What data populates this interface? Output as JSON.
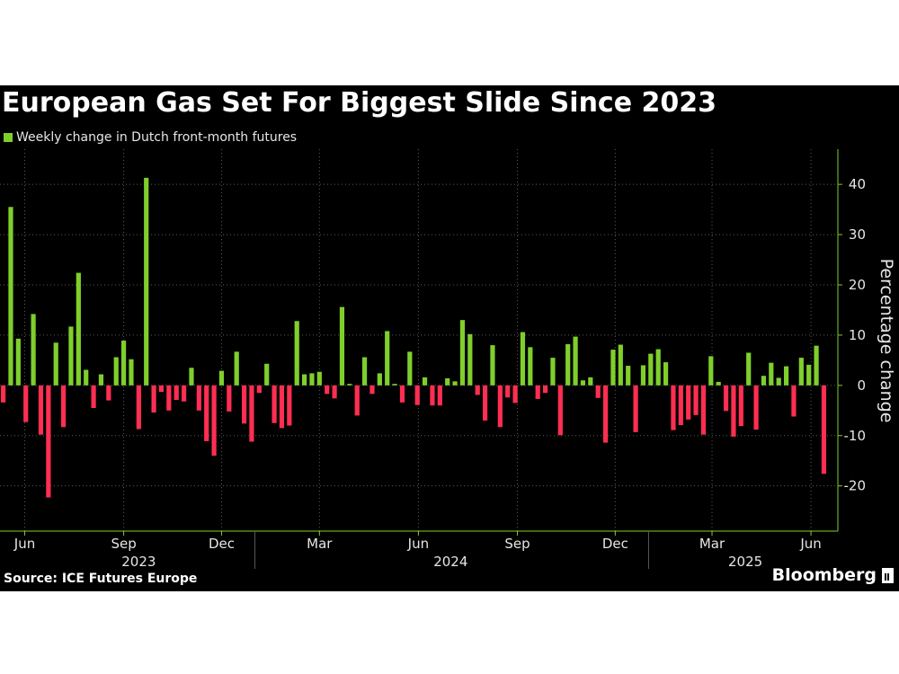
{
  "chart_data": {
    "type": "bar",
    "title": "European Gas Set For Biggest Slide Since 2023",
    "legend": [
      {
        "name": "Weekly change in Dutch front-month futures",
        "color": "#7fcf2c"
      }
    ],
    "ylabel": "Percentage change",
    "ylim": [
      -29,
      47
    ],
    "yticks": [
      40,
      30,
      20,
      10,
      0,
      -10,
      -20
    ],
    "y_axis_side": "right",
    "grid": true,
    "positive_color": "#7fcf2c",
    "negative_color": "#ff2e52",
    "month_ticks": [
      {
        "label": "Jun",
        "x": "2023-06-01"
      },
      {
        "label": "Sep",
        "x": "2023-09-01"
      },
      {
        "label": "Dec",
        "x": "2023-12-01"
      },
      {
        "label": "Mar",
        "x": "2024-03-01"
      },
      {
        "label": "Jun",
        "x": "2024-06-01"
      },
      {
        "label": "Sep",
        "x": "2024-09-01"
      },
      {
        "label": "Dec",
        "x": "2024-12-01"
      },
      {
        "label": "Mar",
        "x": "2025-03-01"
      },
      {
        "label": "Jun",
        "x": "2025-06-01"
      }
    ],
    "year_labels": [
      {
        "label": "2023",
        "x": "2023-09-15"
      },
      {
        "label": "2024",
        "x": "2024-07-01"
      },
      {
        "label": "2025",
        "x": "2025-04-01"
      }
    ],
    "year_separators": [
      "2024-01-01",
      "2025-01-01"
    ],
    "x": [
      "2023-05-12",
      "2023-05-19",
      "2023-05-26",
      "2023-06-02",
      "2023-06-09",
      "2023-06-16",
      "2023-06-23",
      "2023-06-30",
      "2023-07-07",
      "2023-07-14",
      "2023-07-21",
      "2023-07-28",
      "2023-08-04",
      "2023-08-11",
      "2023-08-18",
      "2023-08-25",
      "2023-09-01",
      "2023-09-08",
      "2023-09-15",
      "2023-09-22",
      "2023-09-29",
      "2023-10-06",
      "2023-10-13",
      "2023-10-20",
      "2023-10-27",
      "2023-11-03",
      "2023-11-10",
      "2023-11-17",
      "2023-11-24",
      "2023-12-01",
      "2023-12-08",
      "2023-12-15",
      "2023-12-22",
      "2023-12-29",
      "2024-01-05",
      "2024-01-12",
      "2024-01-19",
      "2024-01-26",
      "2024-02-02",
      "2024-02-09",
      "2024-02-16",
      "2024-02-23",
      "2024-03-01",
      "2024-03-08",
      "2024-03-15",
      "2024-03-22",
      "2024-03-29",
      "2024-04-05",
      "2024-04-12",
      "2024-04-19",
      "2024-04-26",
      "2024-05-03",
      "2024-05-10",
      "2024-05-17",
      "2024-05-24",
      "2024-05-31",
      "2024-06-07",
      "2024-06-14",
      "2024-06-21",
      "2024-06-28",
      "2024-07-05",
      "2024-07-12",
      "2024-07-19",
      "2024-07-26",
      "2024-08-02",
      "2024-08-09",
      "2024-08-16",
      "2024-08-23",
      "2024-08-30",
      "2024-09-06",
      "2024-09-13",
      "2024-09-20",
      "2024-09-27",
      "2024-10-04",
      "2024-10-11",
      "2024-10-18",
      "2024-10-25",
      "2024-11-01",
      "2024-11-08",
      "2024-11-15",
      "2024-11-22",
      "2024-11-29",
      "2024-12-06",
      "2024-12-13",
      "2024-12-20",
      "2024-12-27",
      "2025-01-03",
      "2025-01-10",
      "2025-01-17",
      "2025-01-24",
      "2025-01-31",
      "2025-02-07",
      "2025-02-14",
      "2025-02-21",
      "2025-02-28",
      "2025-03-07",
      "2025-03-14",
      "2025-03-21",
      "2025-03-28",
      "2025-04-04",
      "2025-04-11",
      "2025-04-18",
      "2025-04-25",
      "2025-05-02",
      "2025-05-09",
      "2025-05-16",
      "2025-05-23",
      "2025-05-30",
      "2025-06-06",
      "2025-06-13"
    ],
    "values": [
      -3.4,
      35.5,
      9.3,
      -7.3,
      14.2,
      -9.8,
      -22.3,
      8.5,
      -8.3,
      11.7,
      22.4,
      3.1,
      -4.5,
      2.2,
      -3.0,
      5.6,
      8.9,
      5.2,
      -8.7,
      41.3,
      -5.4,
      -1.3,
      -5.0,
      -2.9,
      -3.2,
      3.5,
      -5.0,
      -11.1,
      -14.0,
      2.9,
      -5.2,
      6.7,
      -7.6,
      -11.2,
      -1.5,
      4.3,
      -7.5,
      -8.5,
      -8.0,
      12.8,
      2.2,
      2.4,
      2.7,
      -1.7,
      -2.6,
      15.6,
      0.3,
      -6.0,
      5.6,
      -1.7,
      2.4,
      10.8,
      0.3,
      -3.4,
      6.7,
      -3.9,
      1.6,
      -4.0,
      -4.0,
      1.4,
      0.8,
      13.0,
      10.2,
      -1.9,
      -7.0,
      8.0,
      -8.3,
      -2.4,
      -3.5,
      10.6,
      7.6,
      -2.7,
      -1.5,
      5.5,
      -9.9,
      8.2,
      9.7,
      1.0,
      1.6,
      -2.5,
      -11.4,
      7.1,
      8.1,
      3.9,
      -9.3,
      4.0,
      6.3,
      7.2,
      4.6,
      -8.9,
      -7.9,
      -6.8,
      -5.9,
      -9.8,
      5.8,
      0.7,
      -5.1,
      -10.2,
      -8.1,
      6.5,
      -8.8,
      1.9,
      4.5,
      1.5,
      3.8,
      -6.2,
      5.5,
      4.1,
      7.9,
      -17.6
    ]
  },
  "footer": {
    "source": "Source: ICE Futures Europe",
    "brand": "Bloomberg"
  }
}
